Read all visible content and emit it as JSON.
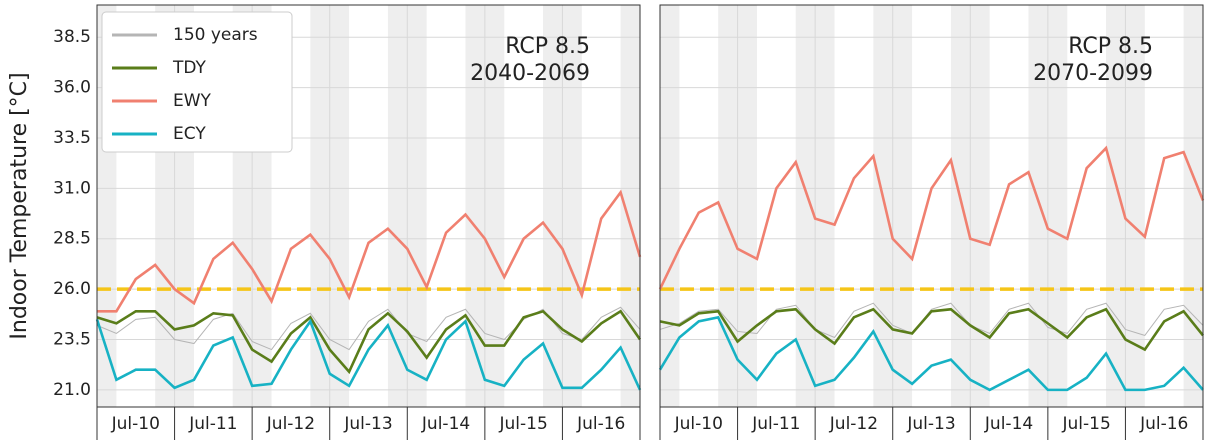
{
  "chart_data": [
    {
      "type": "line",
      "ylabel": "Indoor Temperature [°C]",
      "annotation": [
        "RCP 8.5",
        "2040-2069"
      ],
      "x": [
        0,
        6,
        12,
        18,
        24,
        30,
        36,
        42,
        48,
        54,
        60,
        66,
        72,
        78,
        84,
        90,
        96,
        102,
        108,
        114,
        120,
        126,
        132,
        138,
        144,
        150,
        156,
        162,
        168
      ],
      "categories": [
        "Jul-10",
        "Jul-11",
        "Jul-12",
        "Jul-13",
        "Jul-14",
        "Jul-15",
        "Jul-16"
      ],
      "xlim": [
        0,
        168
      ],
      "xticks": [
        0,
        24,
        48,
        72,
        96,
        120,
        144,
        168
      ],
      "ylim": [
        20.15,
        40.1
      ],
      "yticks": [
        {
          "value": 21,
          "label": "21.0"
        },
        23.5,
        {
          "value": 26,
          "label": "26.0"
        },
        28.5,
        {
          "value": 31,
          "label": "31.0"
        },
        33.5,
        {
          "value": 36,
          "label": "36.0"
        },
        38.5
      ],
      "grid": true,
      "legend": "upper left",
      "hline": {
        "value": 26,
        "color": "#f5c518"
      },
      "series": [
        {
          "name": "150 years",
          "color": "#b5b5b5",
          "values": [
            24.2,
            23.8,
            24.5,
            24.6,
            23.5,
            23.3,
            24.5,
            24.8,
            23.4,
            23.0,
            24.3,
            24.8,
            23.5,
            23.0,
            24.4,
            25.0,
            23.8,
            23.4,
            24.6,
            25.0,
            23.8,
            23.5,
            24.5,
            25.0,
            23.8,
            23.5,
            24.6,
            25.1,
            24.0
          ]
        },
        {
          "name": "TDY",
          "color": "#5a7d1a",
          "values": [
            24.6,
            24.3,
            24.9,
            24.9,
            24.0,
            24.2,
            24.8,
            24.7,
            23.0,
            22.4,
            23.8,
            24.6,
            23.0,
            21.9,
            24.0,
            24.8,
            23.9,
            22.6,
            24.0,
            24.7,
            23.2,
            23.2,
            24.6,
            24.9,
            24.0,
            23.4,
            24.3,
            24.9,
            23.5
          ]
        },
        {
          "name": "EWY",
          "color": "#f08070",
          "values": [
            24.9,
            24.9,
            26.5,
            27.2,
            26.0,
            25.3,
            27.5,
            28.3,
            27.0,
            25.4,
            28.0,
            28.7,
            27.5,
            25.6,
            28.3,
            29.0,
            28.0,
            26.1,
            28.8,
            29.7,
            28.5,
            26.6,
            28.5,
            29.3,
            28.0,
            25.7,
            29.5,
            30.8,
            27.6
          ]
        },
        {
          "name": "ECY",
          "color": "#17b2c4",
          "values": [
            24.5,
            21.5,
            22.0,
            22.0,
            21.1,
            21.5,
            23.2,
            23.6,
            21.2,
            21.3,
            23.0,
            24.4,
            21.8,
            21.2,
            23.0,
            24.2,
            22.0,
            21.5,
            23.5,
            24.4,
            21.5,
            21.2,
            22.5,
            23.3,
            21.1,
            21.1,
            22.0,
            23.1,
            21.0
          ]
        }
      ]
    },
    {
      "type": "line",
      "annotation": [
        "RCP 8.5",
        "2070-2099"
      ],
      "x": [
        0,
        6,
        12,
        18,
        24,
        30,
        36,
        42,
        48,
        54,
        60,
        66,
        72,
        78,
        84,
        90,
        96,
        102,
        108,
        114,
        120,
        126,
        132,
        138,
        144,
        150,
        156,
        162,
        168
      ],
      "categories": [
        "Jul-10",
        "Jul-11",
        "Jul-12",
        "Jul-13",
        "Jul-14",
        "Jul-15",
        "Jul-16"
      ],
      "xlim": [
        0,
        168
      ],
      "xticks": [
        0,
        24,
        48,
        72,
        96,
        120,
        144,
        168
      ],
      "ylim": [
        20.15,
        40.1
      ],
      "yticks": [
        21,
        23.5,
        26,
        28.5,
        31,
        33.5,
        36,
        38.5
      ],
      "grid": true,
      "hline": {
        "value": 26,
        "color": "#f5c518"
      },
      "series": [
        {
          "color": "#b5b5b5",
          "values": [
            24.0,
            24.3,
            24.9,
            25.0,
            23.9,
            23.8,
            25.0,
            25.2,
            24.0,
            23.6,
            24.9,
            25.3,
            24.2,
            23.8,
            25.0,
            25.3,
            24.2,
            23.8,
            25.0,
            25.3,
            24.1,
            23.8,
            25.0,
            25.3,
            24.0,
            23.7,
            25.0,
            25.2,
            24.2
          ]
        },
        {
          "color": "#5a7d1a",
          "values": [
            24.4,
            24.2,
            24.8,
            24.9,
            23.4,
            24.2,
            24.9,
            25.0,
            24.0,
            23.3,
            24.6,
            25.0,
            24.0,
            23.8,
            24.9,
            25.0,
            24.2,
            23.6,
            24.8,
            25.0,
            24.3,
            23.6,
            24.6,
            25.0,
            23.5,
            23.0,
            24.4,
            24.9,
            23.7
          ]
        },
        {
          "color": "#f08070",
          "values": [
            26.0,
            28.0,
            29.8,
            30.3,
            28.0,
            27.5,
            31.0,
            32.3,
            29.5,
            29.2,
            31.5,
            32.6,
            28.5,
            27.5,
            31.0,
            32.4,
            28.5,
            28.2,
            31.2,
            31.8,
            29.0,
            28.5,
            32.0,
            33.0,
            29.5,
            28.6,
            32.5,
            32.8,
            30.4
          ]
        },
        {
          "color": "#17b2c4",
          "values": [
            22.0,
            23.6,
            24.4,
            24.6,
            22.5,
            21.5,
            22.8,
            23.5,
            21.2,
            21.5,
            22.6,
            23.9,
            22.0,
            21.3,
            22.2,
            22.5,
            21.5,
            21.0,
            21.5,
            22.0,
            21.0,
            21.0,
            21.6,
            22.8,
            21.0,
            21.0,
            21.2,
            22.1,
            21.0
          ]
        }
      ]
    }
  ]
}
